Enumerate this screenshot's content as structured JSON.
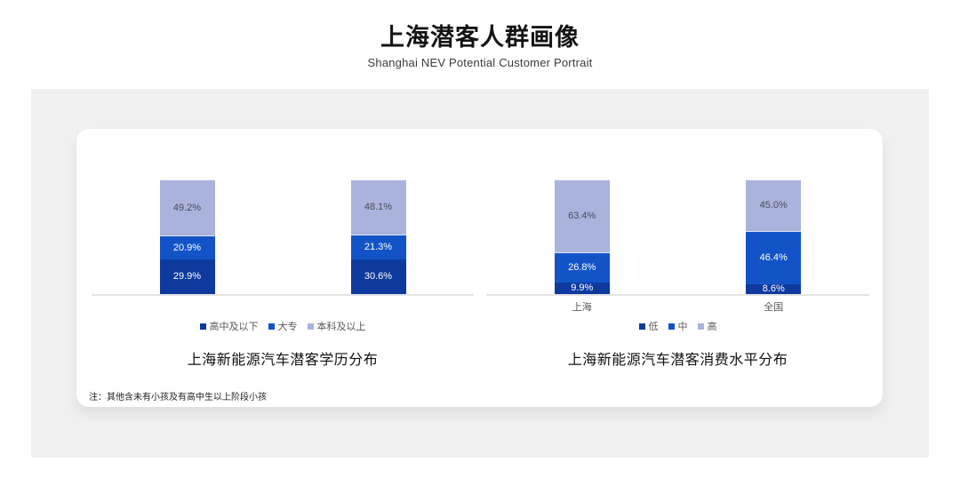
{
  "header": {
    "title": "上海潜客人群画像",
    "subtitle": "Shanghai NEV Potential Customer Portrait"
  },
  "note": "注：其他含未有小孩及有高中生以上阶段小孩",
  "colors": {
    "series_dark": "#0E3A9E",
    "series_mid": "#1254C8",
    "series_light": "#A9B3DC",
    "axis_line": "#E4E4E4",
    "panel_bg": "#F0F0F0",
    "card_bg": "#FFFFFF"
  },
  "chart_data": [
    {
      "type": "bar",
      "stacked": true,
      "title": "上海新能源汽车潜客学历分布",
      "categories": [
        "",
        ""
      ],
      "series": [
        {
          "name": "高中及以下",
          "values": [
            29.9,
            30.6
          ],
          "color": "#0E3A9E",
          "label_color": "#FFFFFF"
        },
        {
          "name": "大专",
          "values": [
            20.9,
            21.3
          ],
          "color": "#1254C8",
          "label_color": "#FFFFFF"
        },
        {
          "name": "本科及以上",
          "values": [
            49.2,
            48.1
          ],
          "color": "#A9B3DC",
          "label_color": "#4B4E5C"
        }
      ],
      "ylim": [
        0,
        100
      ],
      "value_suffix": "%",
      "legend_position": "bottom",
      "grid": false
    },
    {
      "type": "bar",
      "stacked": true,
      "title": "上海新能源汽车潜客消费水平分布",
      "categories": [
        "上海",
        "全国"
      ],
      "series": [
        {
          "name": "低",
          "values": [
            9.9,
            8.6
          ],
          "color": "#0E3A9E",
          "label_color": "#FFFFFF"
        },
        {
          "name": "中",
          "values": [
            26.8,
            46.4
          ],
          "color": "#1254C8",
          "label_color": "#FFFFFF"
        },
        {
          "name": "高",
          "values": [
            63.4,
            45.0
          ],
          "color": "#A9B3DC",
          "label_color": "#4B4E5C"
        }
      ],
      "ylim": [
        0,
        100
      ],
      "value_suffix": "%",
      "legend_position": "bottom",
      "grid": false
    }
  ]
}
